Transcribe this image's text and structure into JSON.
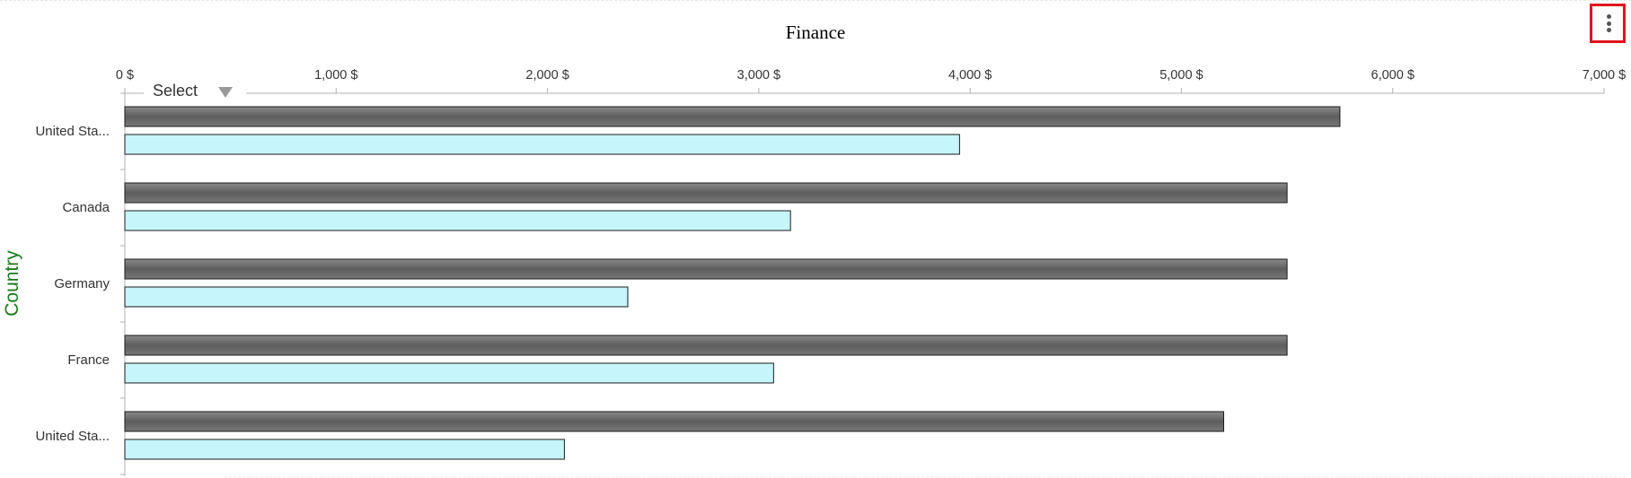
{
  "chart_data": {
    "type": "bar",
    "orientation": "horizontal",
    "title": "Finance",
    "ylabel": "Country",
    "xlabel": "",
    "x_axis_position": "top",
    "xlim": [
      0,
      7000
    ],
    "x_ticks": [
      0,
      1000,
      2000,
      3000,
      4000,
      5000,
      6000,
      7000
    ],
    "x_tick_labels": [
      "0 $",
      "1,000 $",
      "2,000 $",
      "3,000 $",
      "4,000 $",
      "5,000 $",
      "6,000 $",
      "7,000 $"
    ],
    "categories": [
      "United Sta...",
      "Canada",
      "Germany",
      "France",
      "United Sta..."
    ],
    "series": [
      {
        "name": "",
        "color": "#6e6e6e",
        "values": [
          5750,
          5500,
          5500,
          5500,
          5200
        ]
      },
      {
        "name": "",
        "color": "#c6f5fb",
        "values": [
          3950,
          3150,
          2380,
          3070,
          2080
        ]
      }
    ],
    "grid": false,
    "legend": "none"
  },
  "chart": {
    "title": "Finance",
    "y_axis_title": "Country"
  },
  "select": {
    "label": "Select",
    "arrow_icon": "triangle-down-icon"
  },
  "menu": {
    "icon": "vertical-ellipsis-icon",
    "highlight_color": "#e0141e"
  }
}
